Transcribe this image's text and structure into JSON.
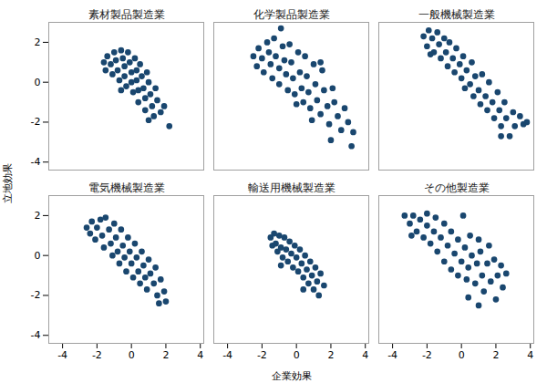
{
  "chart_data": {
    "type": "scatter",
    "xlabel": "企業効果",
    "ylabel": "立地効果",
    "xlim": [
      -4.8,
      4.2
    ],
    "ylim": [
      -4.4,
      3.0
    ],
    "xticks": [
      -4,
      -2,
      0,
      2,
      4
    ],
    "yticks": [
      -4,
      -2,
      0,
      2
    ],
    "color": "#1a476f",
    "marker": "circle",
    "grid": false,
    "series": [
      {
        "name": "素材製品製造業",
        "x": [
          -1.6,
          -1.5,
          -1.4,
          -1.2,
          -1.1,
          -1.0,
          -0.9,
          -0.8,
          -0.7,
          -0.6,
          -0.5,
          -0.4,
          -0.4,
          -0.3,
          -0.2,
          -0.1,
          0,
          0,
          0.1,
          0.2,
          0.3,
          0.3,
          0.4,
          0.4,
          0.5,
          0.6,
          0.7,
          0.8,
          0.8,
          0.9,
          1.0,
          1.1,
          1.2,
          1.3,
          1.4,
          1.5,
          1.7,
          1.9,
          2.2,
          -0.6,
          1.0
        ],
        "values": [
          1.0,
          0.6,
          1.3,
          0.9,
          0.4,
          1.5,
          1.1,
          0.6,
          0.1,
          1.6,
          1.2,
          0.8,
          0.3,
          -0.2,
          1.5,
          1.0,
          0.5,
          0,
          -0.5,
          1.2,
          0.6,
          0.1,
          -0.4,
          -1.0,
          0.9,
          0.3,
          -0.3,
          -0.8,
          -1.4,
          0.5,
          0,
          -0.6,
          -1.2,
          -1.7,
          -0.3,
          -0.9,
          -1.5,
          -1.2,
          -2.2,
          -0.4,
          -1.9
        ]
      },
      {
        "name": "化学製品製造業",
        "x": [
          -2.5,
          -2.3,
          -2.2,
          -2.0,
          -1.9,
          -1.7,
          -1.6,
          -1.5,
          -1.4,
          -1.3,
          -1.2,
          -1.0,
          -1.0,
          -0.9,
          -0.8,
          -0.7,
          -0.6,
          -0.5,
          -0.4,
          -0.3,
          -0.2,
          -0.1,
          0,
          0.1,
          0.2,
          0.3,
          0.4,
          0.5,
          0.6,
          0.7,
          0.8,
          0.9,
          1.0,
          1.1,
          1.2,
          1.4,
          1.5,
          1.6,
          1.8,
          1.9,
          2.1,
          2.2,
          2.4,
          2.6,
          2.8,
          3.0,
          3.2,
          3.3,
          2.0,
          1.4
        ],
        "values": [
          1.3,
          0.8,
          1.7,
          1.2,
          0.5,
          2.0,
          1.5,
          0.9,
          0.2,
          2.2,
          1.3,
          0.7,
          -0.1,
          2.7,
          1.8,
          1.1,
          0.4,
          -0.4,
          1.9,
          1.0,
          0.2,
          -0.6,
          -1.1,
          1.5,
          0.5,
          -0.3,
          -1.0,
          1.3,
          0.3,
          -0.5,
          -1.3,
          -1.9,
          0.9,
          -0.1,
          -0.9,
          -1.6,
          0.6,
          -0.4,
          -1.2,
          -2.1,
          -0.3,
          -1.0,
          -1.7,
          -2.4,
          -1.3,
          -2.0,
          -3.2,
          -2.5,
          -2.9,
          1.0
        ]
      },
      {
        "name": "一般機械製造業",
        "x": [
          -2.2,
          -2.0,
          -1.9,
          -1.7,
          -1.6,
          -1.4,
          -1.3,
          -1.2,
          -1.0,
          -0.9,
          -0.8,
          -0.7,
          -0.5,
          -0.4,
          -0.3,
          -0.1,
          0,
          0.1,
          0.2,
          0.3,
          0.5,
          0.6,
          0.7,
          0.8,
          1.0,
          1.1,
          1.2,
          1.4,
          1.5,
          1.6,
          1.8,
          1.9,
          2.1,
          2.2,
          2.3,
          2.5,
          2.6,
          2.8,
          3.0,
          3.1,
          3.4,
          3.6,
          3.8,
          2.3,
          -1.8
        ],
        "values": [
          2.3,
          1.8,
          2.6,
          2.2,
          1.5,
          2.5,
          1.9,
          1.2,
          2.2,
          1.5,
          0.8,
          2.0,
          1.2,
          0.5,
          1.7,
          0.9,
          0.2,
          1.3,
          -0.3,
          0.6,
          -0.1,
          1.0,
          -0.7,
          0.3,
          -0.4,
          -1.1,
          0.4,
          -0.7,
          -1.4,
          0,
          -1.0,
          -1.8,
          -0.5,
          -1.4,
          -2.2,
          -1.0,
          -1.8,
          -2.7,
          -1.5,
          -2.2,
          -1.7,
          -2.1,
          -2.0,
          -2.7,
          1.4
        ]
      },
      {
        "name": "電気機械製造業",
        "x": [
          -2.6,
          -2.4,
          -2.3,
          -2.1,
          -2.0,
          -1.8,
          -1.7,
          -1.6,
          -1.5,
          -1.3,
          -1.2,
          -1.1,
          -1.0,
          -0.9,
          -0.8,
          -0.7,
          -0.6,
          -0.5,
          -0.4,
          -0.3,
          -0.2,
          -0.1,
          0,
          0.1,
          0.2,
          0.3,
          0.4,
          0.5,
          0.6,
          0.7,
          0.8,
          0.9,
          1.0,
          1.1,
          1.3,
          1.4,
          1.5,
          1.7,
          1.9,
          2.0,
          1.6
        ],
        "values": [
          1.4,
          1.1,
          1.7,
          0.8,
          1.4,
          1.8,
          1.0,
          0.4,
          1.9,
          1.3,
          0.6,
          0,
          1.6,
          0.9,
          0.2,
          -0.4,
          1.3,
          0.5,
          -0.1,
          -0.8,
          0.9,
          0.2,
          -0.4,
          -1.1,
          0.6,
          -0.1,
          -0.8,
          -1.4,
          0.2,
          -0.5,
          -1.1,
          -1.7,
          -0.2,
          -0.9,
          -1.4,
          -0.6,
          -2.0,
          -1.2,
          -1.8,
          -2.3,
          -2.4
        ]
      },
      {
        "name": "輸送用機械製造業",
        "x": [
          -1.5,
          -1.4,
          -1.3,
          -1.2,
          -1.1,
          -1.0,
          -0.9,
          -0.8,
          -0.7,
          -0.6,
          -0.5,
          -0.4,
          -0.3,
          -0.2,
          -0.1,
          0,
          0.1,
          0.2,
          0.3,
          0.4,
          0.5,
          0.6,
          0.7,
          0.8,
          0.9,
          1.0,
          1.1,
          1.2,
          1.3,
          1.4,
          1.6,
          0.4,
          -0.9
        ],
        "values": [
          0.9,
          0.5,
          1.1,
          0.6,
          0.2,
          1.0,
          0.4,
          -0.1,
          0.9,
          0.3,
          -0.3,
          0.7,
          0.1,
          -0.6,
          0.5,
          -0.1,
          -0.8,
          0.3,
          -0.4,
          -1.1,
          0,
          -0.7,
          -1.4,
          -0.3,
          -1.0,
          -1.7,
          -0.6,
          -1.3,
          -2.0,
          -0.9,
          -1.5,
          -1.7,
          -0.5
        ]
      },
      {
        "name": "その他製造業",
        "x": [
          -3.3,
          -3.0,
          -2.8,
          -2.6,
          -2.4,
          -2.2,
          -2.0,
          -2.0,
          -1.8,
          -1.6,
          -1.5,
          -1.4,
          -1.2,
          -1.0,
          -1.0,
          -0.8,
          -0.6,
          -0.6,
          -0.4,
          -0.2,
          -0.2,
          0,
          0.1,
          0.2,
          0.3,
          0.4,
          0.5,
          0.6,
          0.8,
          0.9,
          1.0,
          1.1,
          1.2,
          1.3,
          1.5,
          1.6,
          1.7,
          1.9,
          2.0,
          2.1,
          2.3,
          2.4,
          2.6,
          1.0,
          -2.9,
          0.4
        ],
        "values": [
          2.0,
          1.6,
          2.0,
          1.2,
          1.8,
          0.9,
          1.5,
          2.1,
          0.6,
          1.2,
          1.9,
          0.2,
          0.9,
          1.6,
          -0.3,
          0.5,
          1.2,
          -0.7,
          0.1,
          0.8,
          -1.0,
          -0.3,
          2.0,
          0.4,
          -1.2,
          -0.6,
          1.0,
          0,
          -1.4,
          -0.4,
          0.8,
          0.2,
          -1.0,
          -1.8,
          -0.4,
          0.5,
          -1.3,
          -0.2,
          -2.2,
          -1.0,
          -0.5,
          -1.6,
          -0.9,
          -2.5,
          1.0,
          -2.1
        ]
      }
    ]
  }
}
